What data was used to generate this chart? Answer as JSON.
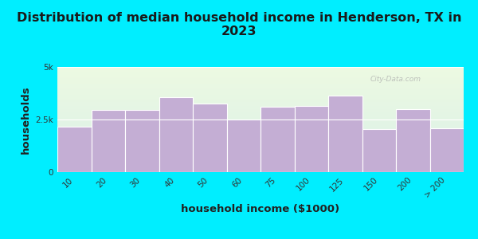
{
  "title": "Distribution of median household income in Henderson, TX in\n2023",
  "xlabel": "household income ($1000)",
  "ylabel": "households",
  "bar_color": "#c4aed4",
  "outer_bg": "#00eeff",
  "plot_bg_top": "#edfae2",
  "plot_bg_bottom": "#daf0e8",
  "categories": [
    "10",
    "20",
    "30",
    "40",
    "50",
    "60",
    "75",
    "100",
    "125",
    "150",
    "200",
    "> 200"
  ],
  "values": [
    2150,
    2950,
    2950,
    3550,
    3250,
    2500,
    3100,
    3150,
    3650,
    2050,
    3000,
    2100
  ],
  "ylim": [
    0,
    5000
  ],
  "ytick_labels": [
    "0",
    "2.5k",
    "5k"
  ],
  "ytick_vals": [
    0,
    2500,
    5000
  ],
  "title_fontsize": 11.5,
  "axis_label_fontsize": 9.5,
  "tick_fontsize": 7.5
}
